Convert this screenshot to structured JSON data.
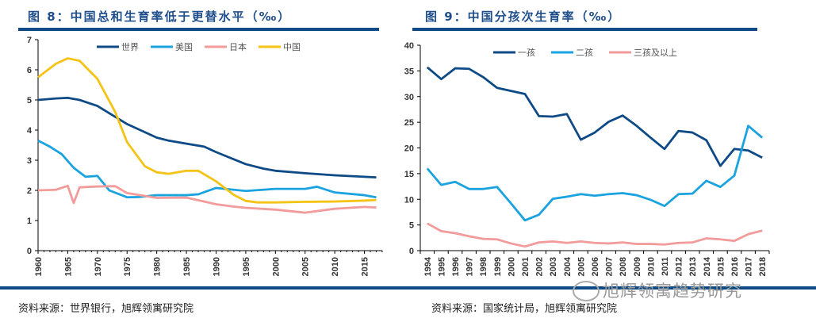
{
  "left": {
    "title": "图 8：中国总和生育率低于更替水平（‰）",
    "source": "资料来源：世界银行，旭辉领寓研究院"
  },
  "right": {
    "title": "图 9：中国分孩次生育率（‰）",
    "source": "资料来源：国家统计局，旭辉领寓研究院"
  },
  "watermark": "旭辉领寓趋势研究",
  "chart_data": [
    {
      "type": "line",
      "ylim": [
        0,
        7
      ],
      "xlim": [
        1960,
        2018
      ],
      "yticks": [
        0,
        1,
        2,
        3,
        4,
        5,
        6,
        7
      ],
      "xticks": [
        1960,
        1965,
        1970,
        1975,
        1980,
        1985,
        1990,
        1995,
        2000,
        2005,
        2010,
        2015
      ],
      "legend": "top",
      "series": [
        {
          "name": "世界",
          "color": "#0d4a86",
          "x": [
            1960,
            1963,
            1965,
            1967,
            1970,
            1975,
            1980,
            1982,
            1985,
            1988,
            1990,
            1995,
            1998,
            2000,
            2005,
            2010,
            2015,
            2017
          ],
          "y": [
            5.0,
            5.05,
            5.07,
            5.0,
            4.8,
            4.2,
            3.75,
            3.65,
            3.55,
            3.45,
            3.27,
            2.87,
            2.72,
            2.65,
            2.57,
            2.5,
            2.45,
            2.43
          ]
        },
        {
          "name": "美国",
          "color": "#1aa3df",
          "x": [
            1960,
            1962,
            1964,
            1966,
            1968,
            1970,
            1972,
            1975,
            1977,
            1980,
            1985,
            1987,
            1990,
            1995,
            2000,
            2005,
            2007,
            2010,
            2015,
            2017
          ],
          "y": [
            3.65,
            3.45,
            3.2,
            2.75,
            2.45,
            2.48,
            2.0,
            1.77,
            1.78,
            1.84,
            1.84,
            1.87,
            2.08,
            1.98,
            2.05,
            2.05,
            2.12,
            1.93,
            1.84,
            1.77
          ]
        },
        {
          "name": "日本",
          "color": "#f29b9b",
          "x": [
            1960,
            1963,
            1965,
            1966,
            1967,
            1970,
            1973,
            1975,
            1980,
            1985,
            1990,
            1993,
            1995,
            2000,
            2005,
            2010,
            2015,
            2017
          ],
          "y": [
            2.0,
            2.02,
            2.15,
            1.58,
            2.1,
            2.13,
            2.14,
            1.91,
            1.75,
            1.76,
            1.54,
            1.46,
            1.42,
            1.36,
            1.26,
            1.39,
            1.45,
            1.43
          ]
        },
        {
          "name": "中国",
          "color": "#f5c316",
          "x": [
            1960,
            1963,
            1965,
            1967,
            1970,
            1973,
            1975,
            1978,
            1980,
            1982,
            1985,
            1987,
            1990,
            1993,
            1995,
            1997,
            2000,
            2005,
            2010,
            2015,
            2017
          ],
          "y": [
            5.75,
            6.2,
            6.38,
            6.3,
            5.7,
            4.6,
            3.6,
            2.8,
            2.6,
            2.55,
            2.65,
            2.65,
            2.3,
            1.85,
            1.65,
            1.6,
            1.6,
            1.62,
            1.63,
            1.66,
            1.68
          ]
        }
      ]
    },
    {
      "type": "line",
      "ylim": [
        0,
        40
      ],
      "yticks": [
        0,
        5,
        10,
        15,
        20,
        25,
        30,
        35,
        40
      ],
      "legend": "top",
      "categories": [
        "1994",
        "1995",
        "1996",
        "1997",
        "1998",
        "1999",
        "2000",
        "2001",
        "2002",
        "2003",
        "2004",
        "2005",
        "2006",
        "2007",
        "2008",
        "2009",
        "2010",
        "2011",
        "2012",
        "2013",
        "2014",
        "2015",
        "2016",
        "2017",
        "2018"
      ],
      "series": [
        {
          "name": "一孩",
          "color": "#0d4a86",
          "values": [
            35.7,
            33.4,
            35.5,
            35.4,
            33.8,
            31.7,
            31.1,
            30.5,
            26.2,
            26.1,
            26.6,
            21.6,
            23.0,
            25.1,
            26.3,
            24.3,
            22.0,
            19.8,
            23.3,
            23.0,
            21.5,
            16.5,
            19.8,
            19.5,
            18.1
          ]
        },
        {
          "name": "二孩",
          "color": "#1aa3df",
          "values": [
            16.0,
            12.8,
            13.4,
            12.0,
            12.0,
            12.4,
            9.2,
            5.9,
            7.0,
            10.1,
            10.5,
            11.0,
            10.7,
            11.0,
            11.2,
            10.8,
            9.9,
            8.7,
            11.0,
            11.1,
            13.6,
            12.4,
            14.6,
            24.3,
            22.0
          ]
        },
        {
          "name": "三孩及以上",
          "color": "#f29b9b",
          "values": [
            5.3,
            3.8,
            3.4,
            2.8,
            2.3,
            2.2,
            1.4,
            0.8,
            1.6,
            1.8,
            1.5,
            1.8,
            1.5,
            1.4,
            1.6,
            1.3,
            1.3,
            1.2,
            1.5,
            1.6,
            2.4,
            2.2,
            1.9,
            3.2,
            3.9
          ]
        }
      ]
    }
  ]
}
